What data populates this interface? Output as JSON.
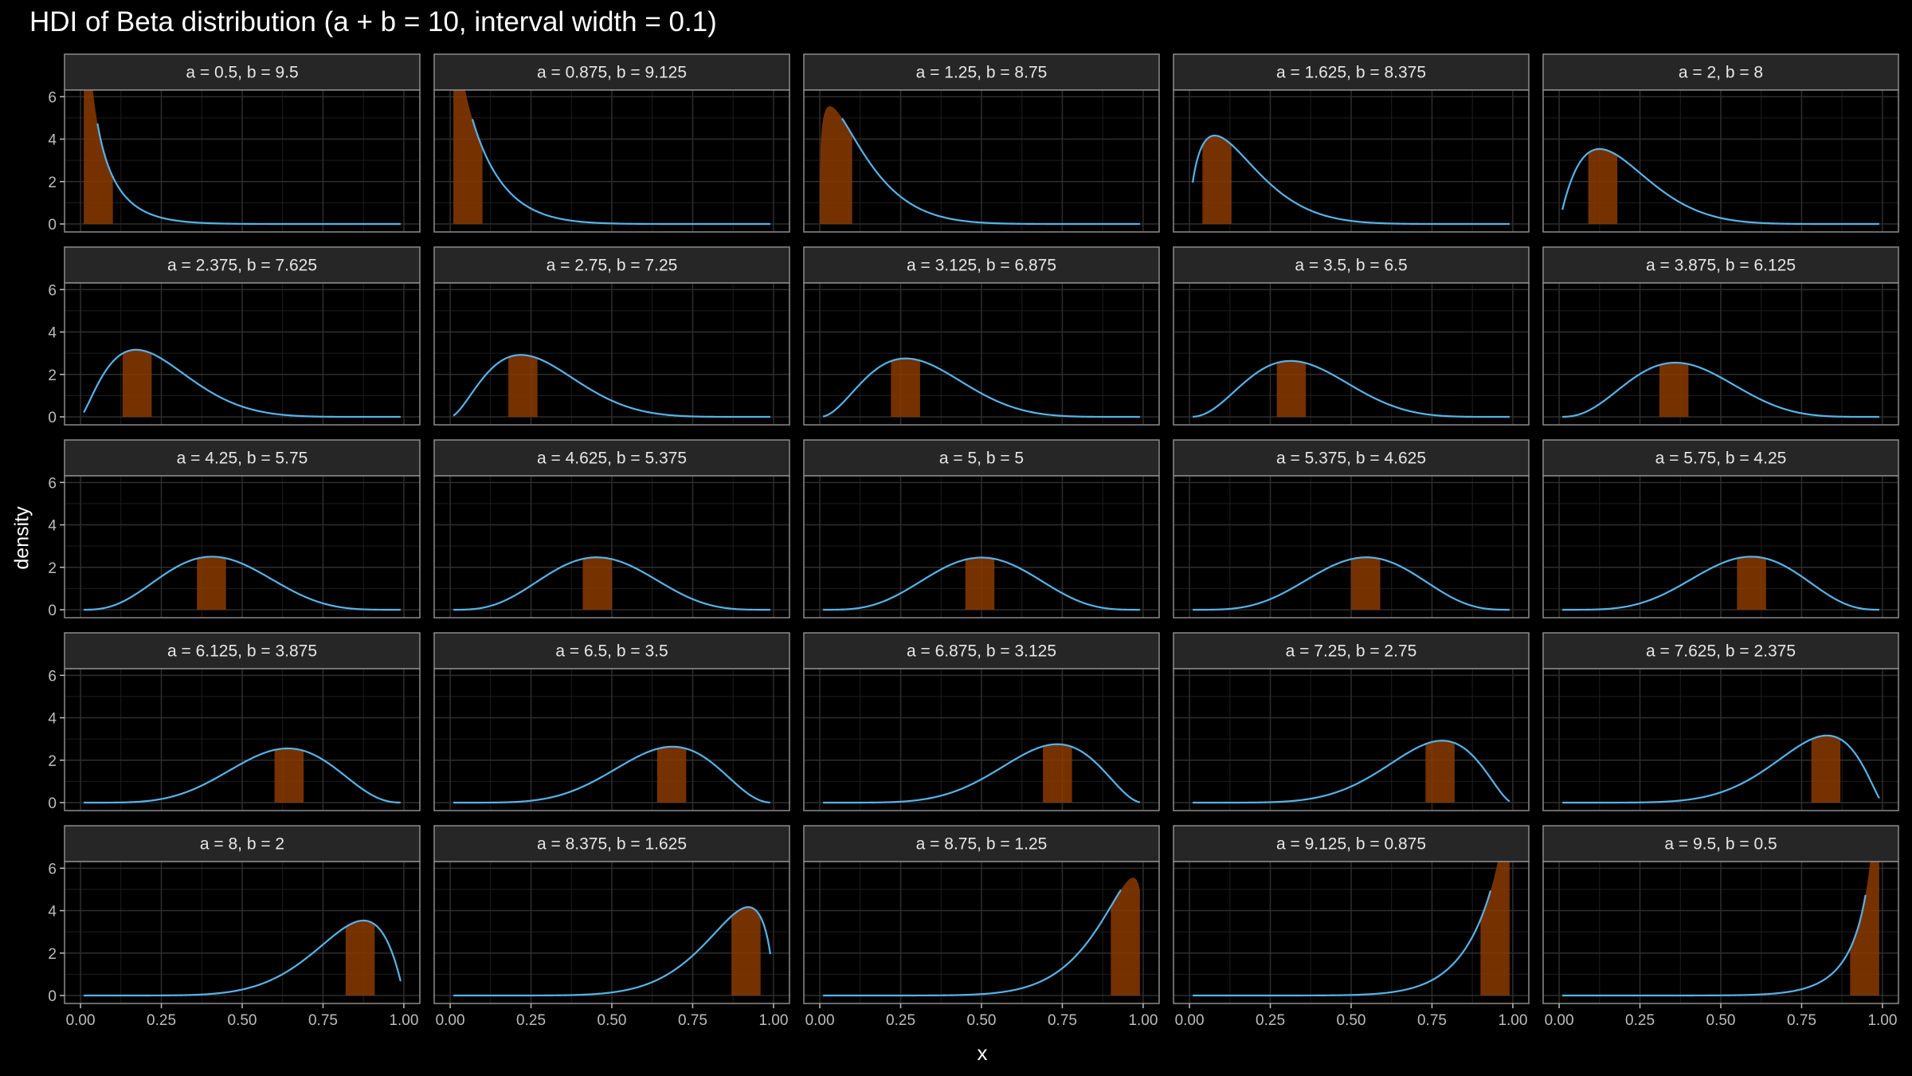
{
  "chart_data": {
    "type": "area",
    "title": "HDI of Beta distribution (a + b = 10, interval width = 0.1)",
    "xlabel": "x",
    "ylabel": "density",
    "xlim": [
      0,
      1
    ],
    "ylim": [
      0,
      6.2
    ],
    "x_ticks": [
      0,
      0.25,
      0.5,
      0.75,
      1.0
    ],
    "x_tick_labels": [
      "0.00",
      "0.25",
      "0.50",
      "0.75",
      "1.00"
    ],
    "y_ticks": [
      0,
      2,
      4,
      6
    ],
    "y_tick_labels": [
      "0",
      "2",
      "4",
      "6"
    ],
    "facet_layout": {
      "rows": 5,
      "cols": 5
    },
    "grid": true,
    "density_curve_color": "#56b4e9",
    "hdi_fill_color": "#8b3a00",
    "panel_background": "#000000",
    "strip_background": "#262626",
    "facets": [
      {
        "label": "a = 0.5, b = 9.5",
        "a": 0.5,
        "b": 9.5,
        "hdi": [
          0.01,
          0.1
        ]
      },
      {
        "label": "a = 0.875, b = 9.125",
        "a": 0.875,
        "b": 9.125,
        "hdi": [
          0.01,
          0.1
        ]
      },
      {
        "label": "a = 1.25, b = 8.75",
        "a": 1.25,
        "b": 8.75,
        "hdi": [
          0.0,
          0.1
        ]
      },
      {
        "label": "a = 1.625, b = 8.375",
        "a": 1.625,
        "b": 8.375,
        "hdi": [
          0.04,
          0.13
        ]
      },
      {
        "label": "a = 2, b = 8",
        "a": 2,
        "b": 8,
        "hdi": [
          0.09,
          0.18
        ]
      },
      {
        "label": "a = 2.375, b = 7.625",
        "a": 2.375,
        "b": 7.625,
        "hdi": [
          0.13,
          0.22
        ]
      },
      {
        "label": "a = 2.75, b = 7.25",
        "a": 2.75,
        "b": 7.25,
        "hdi": [
          0.18,
          0.27
        ]
      },
      {
        "label": "a = 3.125, b = 6.875",
        "a": 3.125,
        "b": 6.875,
        "hdi": [
          0.22,
          0.31
        ]
      },
      {
        "label": "a = 3.5, b = 6.5",
        "a": 3.5,
        "b": 6.5,
        "hdi": [
          0.27,
          0.36
        ]
      },
      {
        "label": "a = 3.875, b = 6.125",
        "a": 3.875,
        "b": 6.125,
        "hdi": [
          0.31,
          0.4
        ]
      },
      {
        "label": "a = 4.25, b = 5.75",
        "a": 4.25,
        "b": 5.75,
        "hdi": [
          0.36,
          0.45
        ]
      },
      {
        "label": "a = 4.625, b = 5.375",
        "a": 4.625,
        "b": 5.375,
        "hdi": [
          0.41,
          0.5
        ]
      },
      {
        "label": "a = 5, b = 5",
        "a": 5,
        "b": 5,
        "hdi": [
          0.45,
          0.54
        ]
      },
      {
        "label": "a = 5.375, b = 4.625",
        "a": 5.375,
        "b": 4.625,
        "hdi": [
          0.5,
          0.59
        ]
      },
      {
        "label": "a = 5.75, b = 4.25",
        "a": 5.75,
        "b": 4.25,
        "hdi": [
          0.55,
          0.64
        ]
      },
      {
        "label": "a = 6.125, b = 3.875",
        "a": 6.125,
        "b": 3.875,
        "hdi": [
          0.6,
          0.69
        ]
      },
      {
        "label": "a = 6.5, b = 3.5",
        "a": 6.5,
        "b": 3.5,
        "hdi": [
          0.64,
          0.73
        ]
      },
      {
        "label": "a = 6.875, b = 3.125",
        "a": 6.875,
        "b": 3.125,
        "hdi": [
          0.69,
          0.78
        ]
      },
      {
        "label": "a = 7.25, b = 2.75",
        "a": 7.25,
        "b": 2.75,
        "hdi": [
          0.73,
          0.82
        ]
      },
      {
        "label": "a = 7.625, b = 2.375",
        "a": 7.625,
        "b": 2.375,
        "hdi": [
          0.78,
          0.87
        ]
      },
      {
        "label": "a = 8, b = 2",
        "a": 8,
        "b": 2,
        "hdi": [
          0.82,
          0.91
        ]
      },
      {
        "label": "a = 8.375, b = 1.625",
        "a": 8.375,
        "b": 1.625,
        "hdi": [
          0.87,
          0.96
        ]
      },
      {
        "label": "a = 8.75, b = 1.25",
        "a": 8.75,
        "b": 1.25,
        "hdi": [
          0.9,
          0.99
        ]
      },
      {
        "label": "a = 9.125, b = 0.875",
        "a": 9.125,
        "b": 0.875,
        "hdi": [
          0.9,
          0.99
        ]
      },
      {
        "label": "a = 9.5, b = 0.5",
        "a": 9.5,
        "b": 0.5,
        "hdi": [
          0.9,
          0.99
        ]
      }
    ]
  }
}
